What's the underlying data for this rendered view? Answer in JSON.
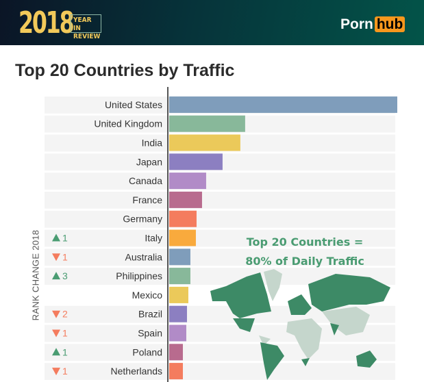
{
  "header": {
    "year": "2018",
    "year_sub": "YEAR IN REVIEW",
    "brand_left": "Porn",
    "brand_right": "hub"
  },
  "chart_data": {
    "type": "bar",
    "orientation": "horizontal",
    "title": "Top 20 Countries by Traffic",
    "categories": [
      "United States",
      "United Kingdom",
      "India",
      "Japan",
      "Canada",
      "France",
      "Germany",
      "Italy",
      "Australia",
      "Philippines",
      "Mexico",
      "Brazil",
      "Spain",
      "Poland",
      "Netherlands"
    ],
    "values": [
      100,
      33.3,
      31.2,
      23.4,
      16.2,
      14.4,
      12,
      11.7,
      9.3,
      9.3,
      8.4,
      7.8,
      7.5,
      6,
      6
    ],
    "colors": [
      "#7f9dbb",
      "#88b89a",
      "#ebc95a",
      "#8c7fc1",
      "#b18bc7",
      "#b86b8e",
      "#f47c5e",
      "#f9aa3d",
      "#7f9dbb",
      "#88b89a",
      "#ebc95a",
      "#8c7fc1",
      "#b18bc7",
      "#b86b8e",
      "#f47c5e"
    ],
    "rank_change_label": "RANK CHANGE 2018",
    "rank_changes": [
      null,
      null,
      null,
      null,
      null,
      null,
      null,
      {
        "dir": "up",
        "value": "1"
      },
      {
        "dir": "down",
        "value": "1"
      },
      {
        "dir": "up",
        "value": "3"
      },
      null,
      {
        "dir": "down",
        "value": "2"
      },
      {
        "dir": "down",
        "value": "1"
      },
      {
        "dir": "up",
        "value": "1"
      },
      {
        "dir": "down",
        "value": "1"
      }
    ],
    "up_color": "#4a9c72",
    "down_color": "#f47c5e",
    "annotation_line1": "Top 20 Countries =",
    "annotation_line2": "80% of Daily Traffic",
    "map_highlight_color": "#3d8a66",
    "map_other_color": "#c5d6cc"
  }
}
